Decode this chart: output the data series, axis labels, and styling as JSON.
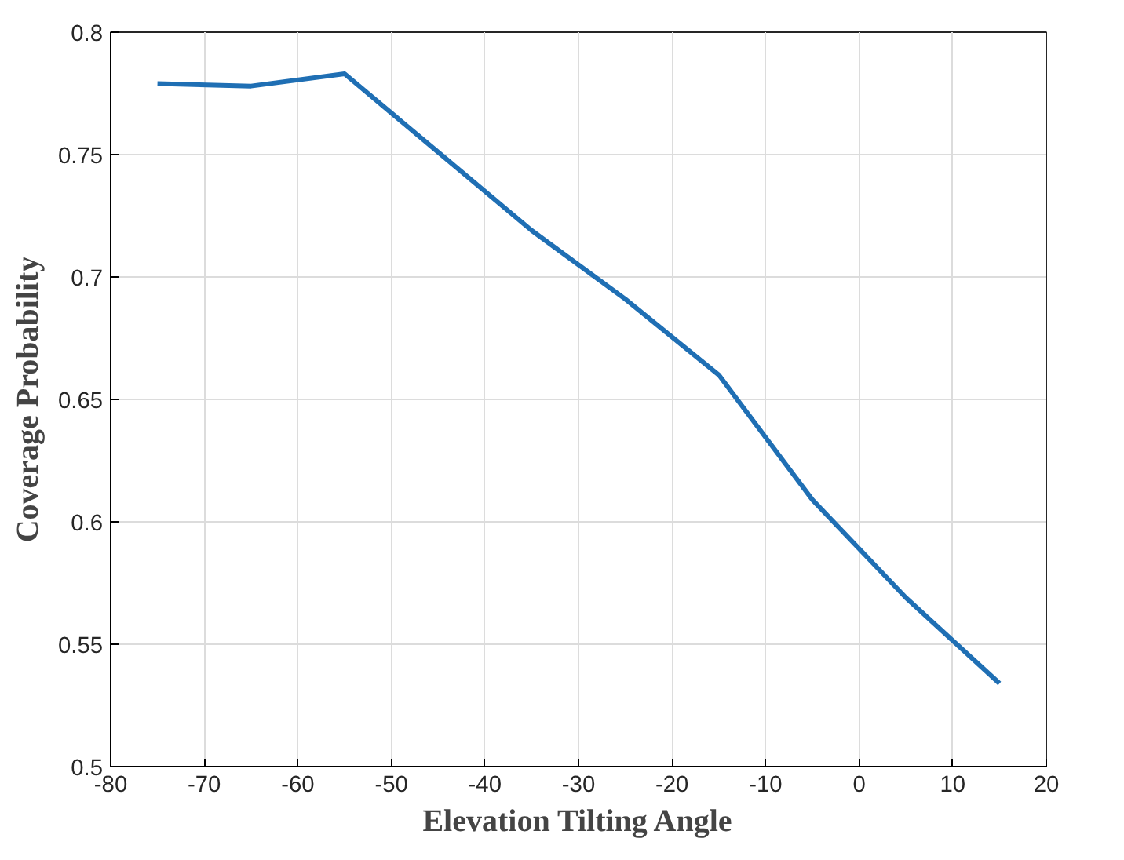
{
  "chart_data": {
    "type": "line",
    "xlabel": "Elevation Tilting Angle",
    "ylabel": "Coverage Probability",
    "x": [
      -75,
      -65,
      -55,
      -45,
      -35,
      -25,
      -15,
      -5,
      5,
      15
    ],
    "series": [
      {
        "color": "#1f6fb4",
        "values": [
          0.779,
          0.778,
          0.783,
          0.751,
          0.719,
          0.691,
          0.66,
          0.609,
          0.569,
          0.534
        ]
      }
    ],
    "xlim": [
      -80,
      20
    ],
    "xticks": [
      -80,
      -70,
      -60,
      -50,
      -40,
      -30,
      -20,
      -10,
      0,
      10,
      20
    ],
    "ylim": [
      0.5,
      0.8
    ],
    "yticks": [
      0.5,
      0.55,
      0.6,
      0.65,
      0.7,
      0.75,
      0.8
    ],
    "grid": true,
    "line_style": "solid",
    "marker": "none"
  }
}
